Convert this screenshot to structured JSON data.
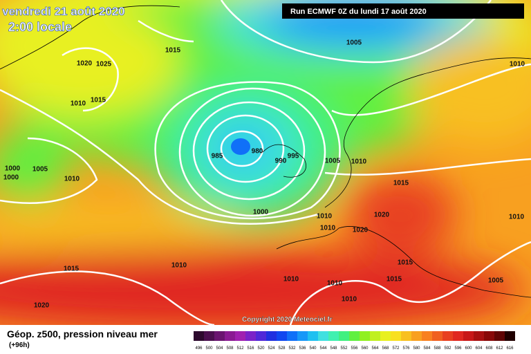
{
  "header": {
    "date": "vendredi 21 août 2020",
    "time": "2:00 locale",
    "run": "Run ECMWF 0Z du lundi 17 août 2020"
  },
  "isobar_labels": [
    "1005",
    "1010",
    "1020",
    "1025",
    "1015",
    "1010",
    "1015",
    "1000",
    "1000",
    "1005",
    "1010",
    "985",
    "980",
    "990",
    "995",
    "1005",
    "1010",
    "1015",
    "1000",
    "1010",
    "1010",
    "1020",
    "1020",
    "1015",
    "1015",
    "1005",
    "1010",
    "1015",
    "1010",
    "1010",
    "1010",
    "1010",
    "1020"
  ],
  "copyright": "Copyright 2020 Meteociel.fr",
  "footer": {
    "title": "Géop. z500, pression niveau mer",
    "lead": "(+96h)"
  },
  "legend": {
    "labels": [
      "496",
      "500",
      "504",
      "508",
      "512",
      "516",
      "520",
      "524",
      "528",
      "532",
      "536",
      "540",
      "544",
      "548",
      "552",
      "556",
      "560",
      "564",
      "568",
      "572",
      "576",
      "580",
      "584",
      "588",
      "592",
      "596",
      "600",
      "604",
      "608",
      "612",
      "616"
    ],
    "colors": [
      "#2d0a2e",
      "#4b0f4f",
      "#6a1470",
      "#8a1a93",
      "#a020b0",
      "#7a22c8",
      "#5028d8",
      "#2030e0",
      "#1048f0",
      "#1070f8",
      "#1898f8",
      "#20c0f0",
      "#40e0e0",
      "#40f0b0",
      "#40f080",
      "#60f040",
      "#90f020",
      "#c0f020",
      "#e8f020",
      "#f8e020",
      "#f8c020",
      "#f8a020",
      "#f88020",
      "#f06020",
      "#e84020",
      "#e02820",
      "#c81818",
      "#a81010",
      "#880808",
      "#600404",
      "#200000"
    ]
  }
}
